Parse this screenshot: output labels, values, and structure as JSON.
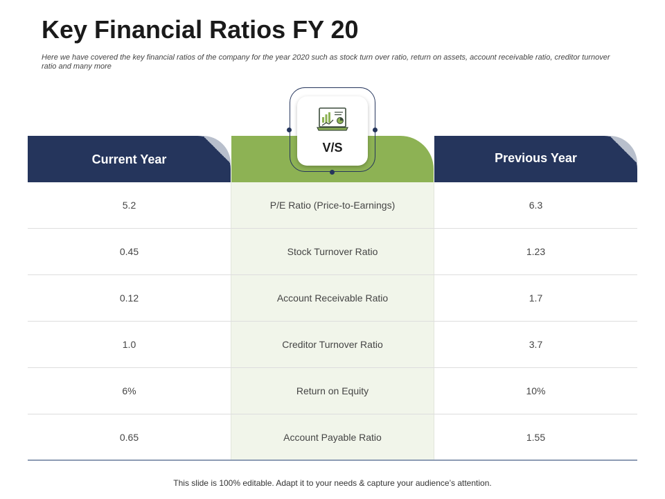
{
  "slide": {
    "title": "Key Financial Ratios FY 20",
    "subtitle": "Here we have covered the key financial ratios of the company for the year 2020 such as stock turn over ratio, return on assets, account receivable ratio, creditor turnover ratio and many more",
    "footer": "This slide is 100% editable. Adapt it to your needs & capture your audience’s attention."
  },
  "header": {
    "current_year": "Current Year",
    "vs": "V/S",
    "previous_year": "Previous Year",
    "icon": "laptop-analytics-icon"
  },
  "colors": {
    "navy": "#25355c",
    "green": "#8db254",
    "mid_column_bg": "#f1f5ea"
  },
  "rows": [
    {
      "current": "5.2",
      "metric": "P/E Ratio (Price-to-Earnings)",
      "previous": "6.3"
    },
    {
      "current": "0.45",
      "metric": "Stock Turnover  Ratio",
      "previous": "1.23"
    },
    {
      "current": "0.12",
      "metric": "Account Receivable Ratio",
      "previous": "1.7"
    },
    {
      "current": "1.0",
      "metric": "Creditor Turnover  Ratio",
      "previous": "3.7"
    },
    {
      "current": "6%",
      "metric": "Return on Equity",
      "previous": "10%"
    },
    {
      "current": "0.65",
      "metric": "Account Payable Ratio",
      "previous": "1.55"
    }
  ]
}
